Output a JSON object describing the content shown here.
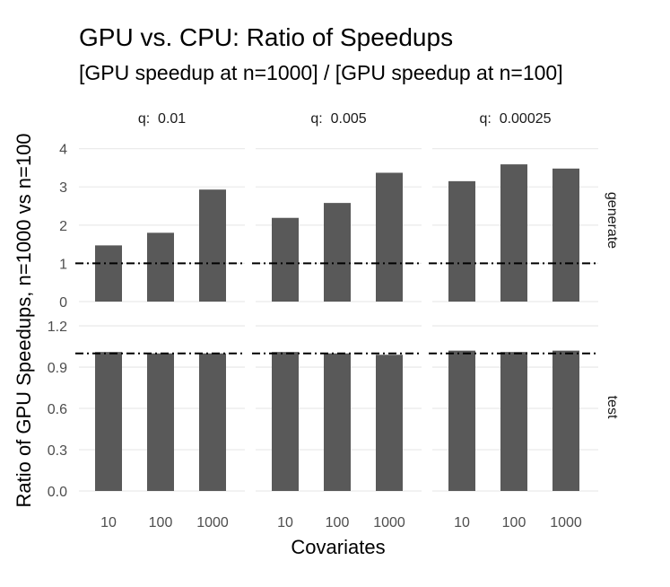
{
  "chart_data": {
    "type": "bar",
    "title": "GPU vs. CPU: Ratio of Speedups",
    "subtitle": "[GPU speedup at n=1000] / [GPU speedup at n=100]",
    "xlabel": "Covariates",
    "ylabel": "Ratio of GPU Speedups, n=1000 vs n=100",
    "categories": [
      "10",
      "100",
      "1000"
    ],
    "facet_columns": [
      {
        "label": "q:",
        "value": "0.01"
      },
      {
        "label": "q:",
        "value": "0.005"
      },
      {
        "label": "q:",
        "value": "0.00025"
      }
    ],
    "facet_rows": [
      {
        "name": "generate",
        "ylim": [
          0,
          4.25
        ],
        "yticks": [
          "0",
          "1",
          "2",
          "3",
          "4"
        ],
        "reference_line": 1,
        "panels": [
          {
            "values": [
              1.47,
              1.8,
              2.93
            ]
          },
          {
            "values": [
              2.19,
              2.58,
              3.37
            ]
          },
          {
            "values": [
              3.15,
              3.59,
              3.48
            ]
          }
        ]
      },
      {
        "name": "test",
        "ylim": [
          0,
          1.22
        ],
        "yticks": [
          "0.0",
          "0.3",
          "0.6",
          "0.9",
          "1.2"
        ],
        "reference_line": 1,
        "panels": [
          {
            "values": [
              1.01,
              1.0,
              1.0
            ]
          },
          {
            "values": [
              1.01,
              1.0,
              0.99
            ]
          },
          {
            "values": [
              1.02,
              1.01,
              1.02
            ]
          }
        ]
      }
    ],
    "bar_color": "#595959",
    "grid": true
  }
}
